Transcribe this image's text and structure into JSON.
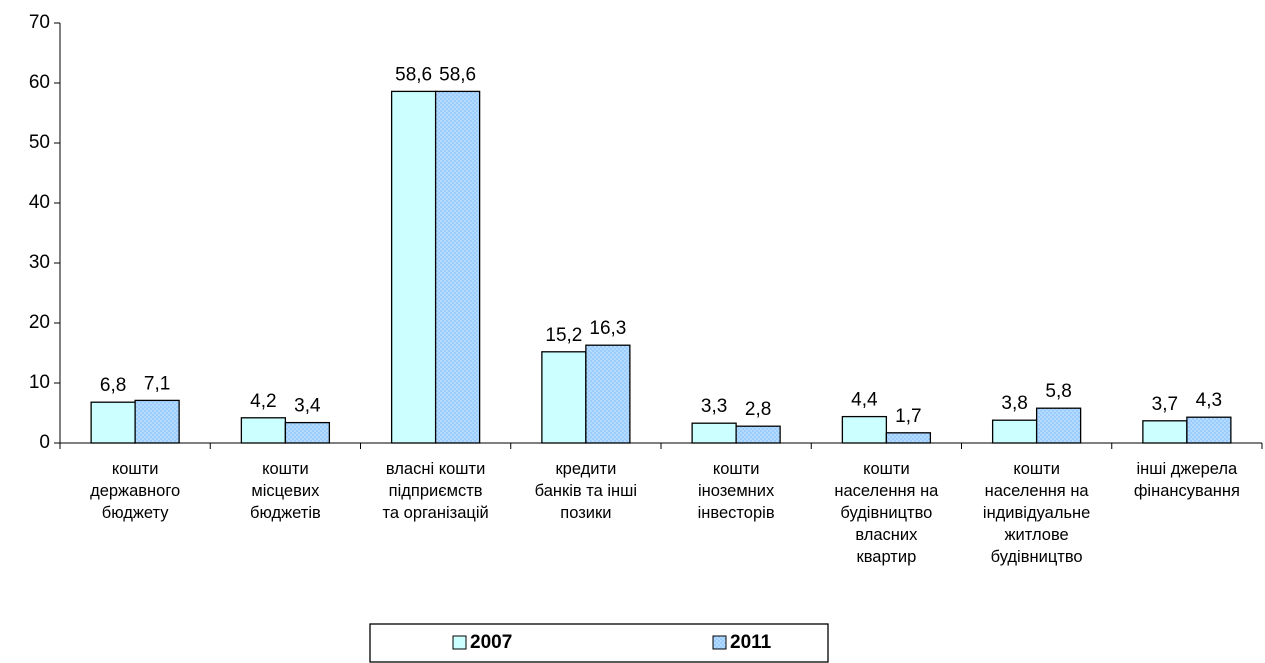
{
  "chart_data": {
    "type": "bar",
    "categories": [
      "кошти\nдержавного\nбюджету",
      "кошти\nмісцевих\nбюджетів",
      "власні кошти\nпідприємств\nта організацій",
      "кредити\nбанків та інші\nпозики",
      "кошти\nіноземних\nінвесторів",
      "кошти\nнаселення на\nбудівництво\nвласних\nквартир",
      "кошти\nнаселення на\nіндивідуальне\nжитлове\nбудівництво",
      "інші джерела\nфінансування"
    ],
    "series": [
      {
        "name": "2007",
        "color": "#ccffff",
        "values": [
          6.8,
          4.2,
          58.6,
          15.2,
          3.3,
          4.4,
          3.8,
          3.7
        ],
        "value_labels": [
          "6,8",
          "4,2",
          "58,6",
          "15,2",
          "3,3",
          "4,4",
          "3,8",
          "3,7"
        ]
      },
      {
        "name": "2011",
        "color": "#99ccff",
        "values": [
          7.1,
          3.4,
          58.6,
          16.3,
          2.8,
          1.7,
          5.8,
          4.3
        ],
        "value_labels": [
          "7,1",
          "3,4",
          "58,6",
          "16,3",
          "2,8",
          "1,7",
          "5,8",
          "4,3"
        ]
      }
    ],
    "ylim": [
      0,
      70
    ],
    "yticks": [
      0,
      10,
      20,
      30,
      40,
      50,
      60,
      70
    ],
    "legend": "bottom"
  }
}
